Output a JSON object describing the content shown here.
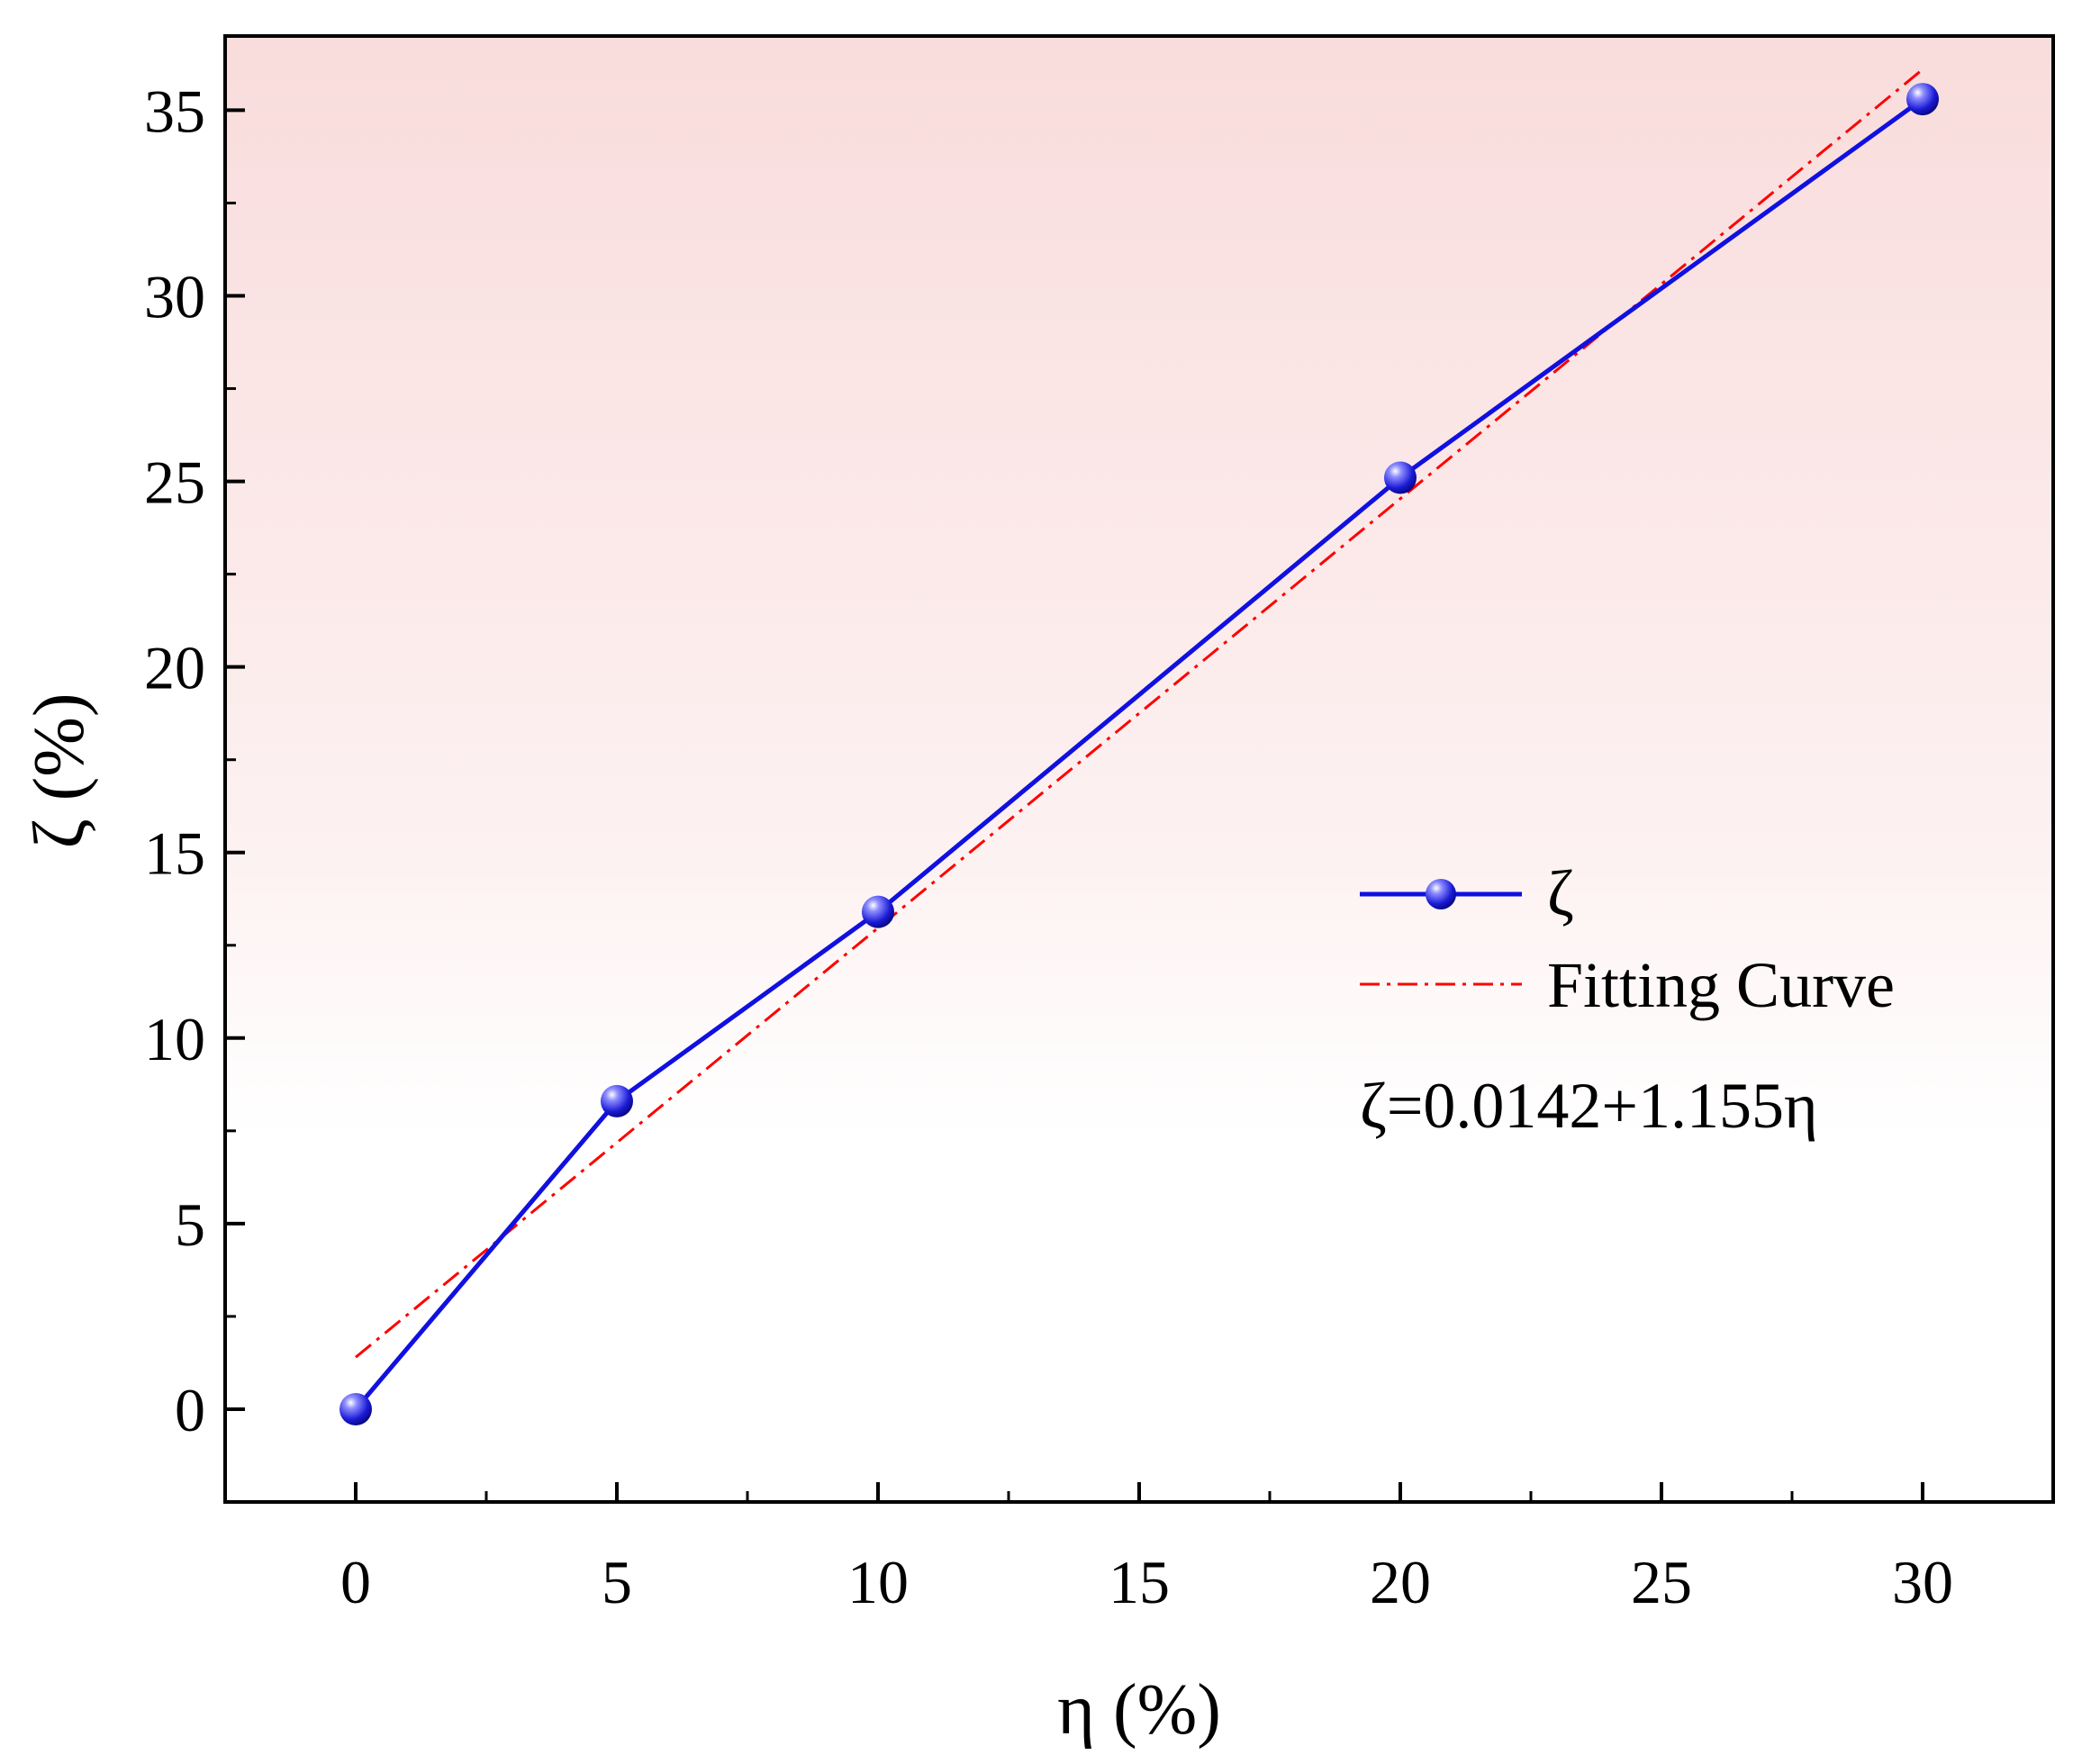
{
  "chart_data": {
    "type": "line",
    "title": "",
    "xlabel": "η (%)",
    "ylabel": "ζ (%)",
    "xlim": [
      -2.5,
      32.5
    ],
    "ylim": [
      -2.5,
      37
    ],
    "x_ticks": [
      0,
      5,
      10,
      15,
      20,
      25,
      30
    ],
    "y_ticks": [
      0,
      5,
      10,
      15,
      20,
      25,
      30,
      35
    ],
    "grid": false,
    "background": "light pink gradient fading to white toward the bottom",
    "legend_position": "center-right",
    "series": [
      {
        "name": "ζ",
        "style": "solid line with spherical markers",
        "color": "#1010e0",
        "x": [
          0,
          5,
          10,
          20,
          30
        ],
        "y": [
          0,
          8.3,
          13.4,
          25.1,
          35.3
        ]
      },
      {
        "name": "Fitting Curve",
        "style": "dash-dot line",
        "color": "#ff0000",
        "x": [
          0,
          30
        ],
        "y": [
          1.4,
          36.1
        ]
      }
    ],
    "annotations": [
      "ζ=0.0142+1.155η"
    ]
  }
}
